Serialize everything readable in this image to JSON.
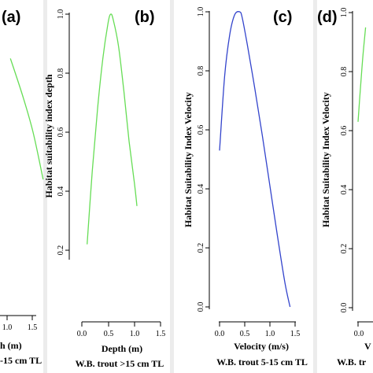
{
  "chart_data": [
    {
      "type": "line",
      "panel_label": "(a)",
      "xlabel": "h (m)",
      "subtitle": "-15 cm TL",
      "ylabel": "",
      "x_ticks": [
        "1.0",
        "1.5"
      ],
      "y_ticks": [],
      "color": "#66dd55",
      "series": [
        {
          "x": [
            0.55,
            0.8,
            1.0,
            1.2
          ],
          "y": [
            0.85,
            0.72,
            0.6,
            0.44
          ]
        }
      ]
    },
    {
      "type": "line",
      "panel_label": "(b)",
      "xlabel": "Depth (m)",
      "subtitle": "W.B. trout >15 cm TL",
      "ylabel": "Habitat suitability index depth",
      "xlim": [
        0.0,
        1.5
      ],
      "ylim": [
        0.2,
        1.0
      ],
      "x_ticks": [
        "0.0",
        "0.5",
        "1.0",
        "1.5"
      ],
      "y_ticks": [
        "0.2",
        "0.4",
        "0.6",
        "0.8",
        "1.0"
      ],
      "color": "#66dd55",
      "series": [
        {
          "x": [
            0.1,
            0.2,
            0.3,
            0.4,
            0.5,
            0.55,
            0.6,
            0.7,
            0.8,
            0.9,
            1.0,
            1.05
          ],
          "y": [
            0.22,
            0.47,
            0.68,
            0.85,
            0.97,
            1.0,
            0.98,
            0.89,
            0.74,
            0.57,
            0.43,
            0.35
          ]
        }
      ]
    },
    {
      "type": "line",
      "panel_label": "(c)",
      "xlabel": "Velocity (m/s)",
      "subtitle": "W.B. trout 5-15 cm TL",
      "ylabel": "Habitat Suitability Index Velocity",
      "xlim": [
        0.0,
        1.5
      ],
      "ylim": [
        0.0,
        1.0
      ],
      "x_ticks": [
        "0.0",
        "0.5",
        "1.0",
        "1.5"
      ],
      "y_ticks": [
        "0.0",
        "0.2",
        "0.4",
        "0.6",
        "0.8",
        "1.0"
      ],
      "color": "#3344cc",
      "series": [
        {
          "x": [
            0.0,
            0.1,
            0.2,
            0.3,
            0.4,
            0.45,
            0.55,
            0.7,
            0.85,
            1.0,
            1.15,
            1.3,
            1.4
          ],
          "y": [
            0.53,
            0.78,
            0.92,
            0.99,
            1.0,
            0.98,
            0.89,
            0.74,
            0.58,
            0.41,
            0.24,
            0.08,
            0.0
          ]
        }
      ]
    },
    {
      "type": "line",
      "panel_label": "(d)",
      "xlabel": "V",
      "subtitle": "W.B. tr",
      "ylabel": "Habitat Suitability Index Velocity",
      "x_ticks": [
        "0.0"
      ],
      "y_ticks": [
        "1.0",
        "0.8",
        "0.6",
        "0.4",
        "0.2",
        "0.0"
      ],
      "color": "#66dd55",
      "series": [
        {
          "x": [
            0.0,
            0.05,
            0.1,
            0.15
          ],
          "y": [
            0.63,
            0.75,
            0.86,
            0.95
          ]
        }
      ]
    }
  ]
}
